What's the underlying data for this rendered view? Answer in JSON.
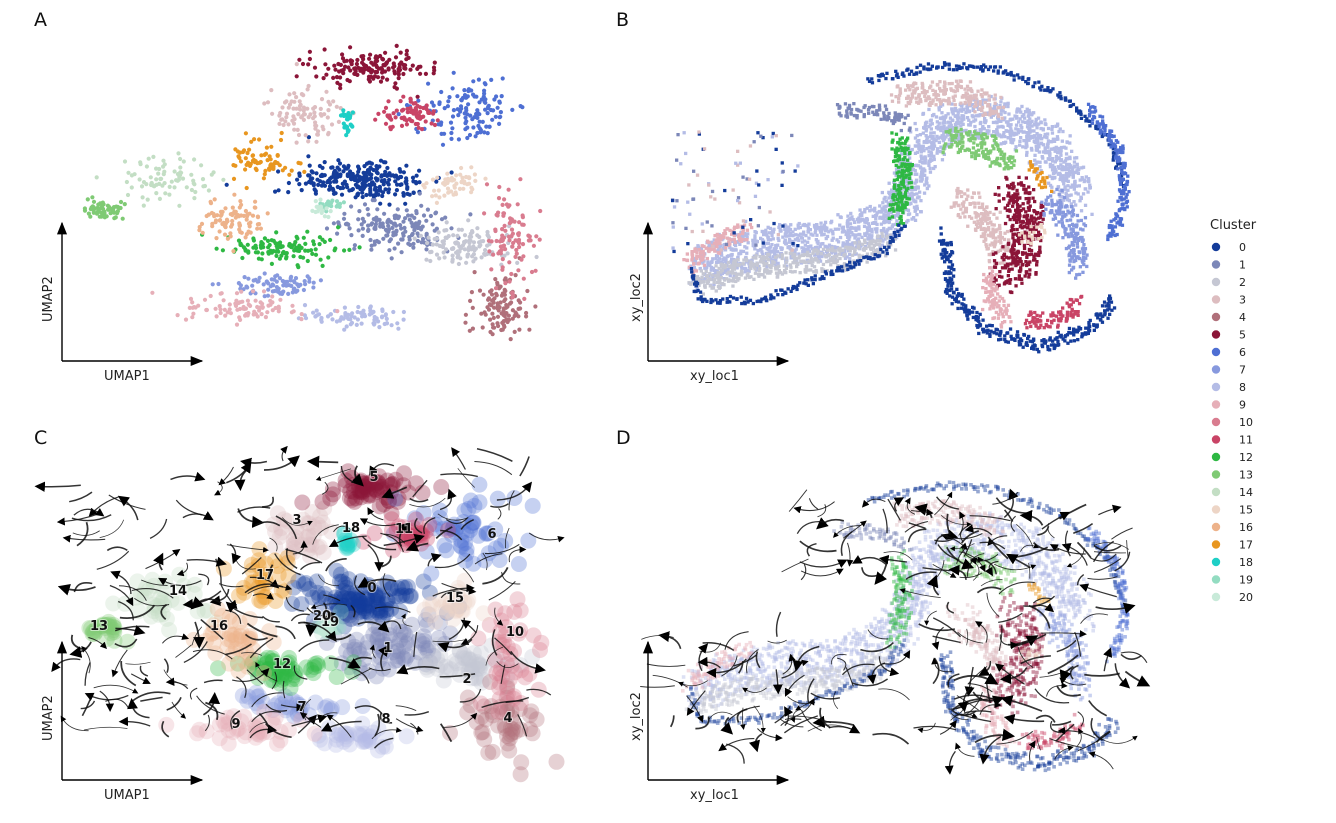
{
  "figure": {
    "legend": {
      "title": "Cluster",
      "items": [
        {
          "label": "0",
          "color": "#143C9A"
        },
        {
          "label": "1",
          "color": "#7C87B8"
        },
        {
          "label": "2",
          "color": "#C5C7D3"
        },
        {
          "label": "3",
          "color": "#DDBDC0"
        },
        {
          "label": "4",
          "color": "#B0707A"
        },
        {
          "label": "5",
          "color": "#8B1538"
        },
        {
          "label": "6",
          "color": "#4E6FD3"
        },
        {
          "label": "7",
          "color": "#8799DE"
        },
        {
          "label": "8",
          "color": "#B4BCE6"
        },
        {
          "label": "9",
          "color": "#E6AFB8"
        },
        {
          "label": "10",
          "color": "#D97C8F"
        },
        {
          "label": "11",
          "color": "#C94466"
        },
        {
          "label": "12",
          "color": "#2EB843"
        },
        {
          "label": "13",
          "color": "#7FCA74"
        },
        {
          "label": "14",
          "color": "#C3DEC4"
        },
        {
          "label": "15",
          "color": "#EDD5C6"
        },
        {
          "label": "16",
          "color": "#EDB28A"
        },
        {
          "label": "17",
          "color": "#E8961F"
        },
        {
          "label": "18",
          "color": "#1ECFC6"
        },
        {
          "label": "19",
          "color": "#93DCC1"
        },
        {
          "label": "20",
          "color": "#C8EAD9"
        }
      ]
    }
  },
  "chart_data": [
    {
      "panel": "A",
      "type": "scatter",
      "xlabel": "UMAP1",
      "ylabel": "UMAP2",
      "color_by": "Cluster"
    },
    {
      "panel": "B",
      "type": "scatter",
      "xlabel": "xy_loc1",
      "ylabel": "xy_loc2",
      "color_by": "Cluster"
    },
    {
      "panel": "C",
      "type": "scatter",
      "xlabel": "UMAP1",
      "ylabel": "UMAP2",
      "color_by": "Cluster",
      "overlay": "streamlines",
      "cluster_labels": [
        "0",
        "1",
        "2",
        "3",
        "4",
        "5",
        "6",
        "7",
        "8",
        "9",
        "10",
        "11",
        "12",
        "13",
        "14",
        "15",
        "16",
        "17",
        "18",
        "19",
        "20"
      ]
    },
    {
      "panel": "D",
      "type": "scatter",
      "xlabel": "xy_loc1",
      "ylabel": "xy_loc2",
      "color_by": "Cluster",
      "overlay": "streamlines"
    }
  ]
}
